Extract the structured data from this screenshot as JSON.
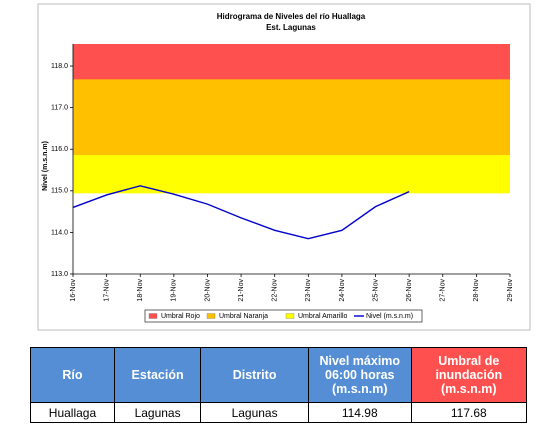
{
  "chart_data": {
    "type": "line",
    "title": "Hidrograma de Niveles del río Huallaga",
    "subtitle": "Est. Lagunas",
    "y_label": "Nivel (m.s.n.m)",
    "categories": [
      "16-Nov",
      "17-Nov",
      "18-Nov",
      "19-Nov",
      "20-Nov",
      "21-Nov",
      "22-Nov",
      "23-Nov",
      "24-Nov",
      "25-Nov",
      "26-Nov",
      "27-Nov",
      "28-Nov",
      "29-Nov"
    ],
    "thresholds": [
      {
        "name": "Umbral Rojo",
        "color": "#ff5050",
        "value": 117.68
      },
      {
        "name": "Umbral Naranja",
        "color": "#ffc000",
        "value": 115.86
      },
      {
        "name": "Umbral Amarillo",
        "color": "#ffff00",
        "value": 114.94
      }
    ],
    "series": [
      {
        "name": "Nivel (m.s.n.m)",
        "color": "#0000cc",
        "values": [
          114.6,
          114.9,
          115.12,
          114.92,
          114.68,
          114.35,
          114.05,
          113.85,
          114.05,
          114.62,
          114.98,
          null,
          null,
          null
        ]
      }
    ],
    "ylim": [
      113.0,
      118.53
    ],
    "yticks": [
      {
        "value": 113,
        "label": "113.0"
      },
      {
        "value": 114,
        "label": "114.0"
      },
      {
        "value": 115,
        "label": "115.0"
      },
      {
        "value": 116,
        "label": "116.0"
      },
      {
        "value": 117,
        "label": "117.0"
      },
      {
        "value": 118,
        "label": "118.0"
      }
    ],
    "grid": false,
    "legend": "bottom"
  },
  "table": {
    "header": [
      "Río",
      "Estación",
      "Distrito",
      "Nivel máximo 06:00 horas (m.s.n.m)",
      "Umbral de inundación (m.s.n.m)"
    ],
    "header_colors": [
      "#558ed5",
      "#558ed5",
      "#558ed5",
      "#558ed5",
      "#ff5050"
    ],
    "rows": [
      [
        "Huallaga",
        "Lagunas",
        "Lagunas",
        "114.98",
        "117.68"
      ]
    ]
  }
}
